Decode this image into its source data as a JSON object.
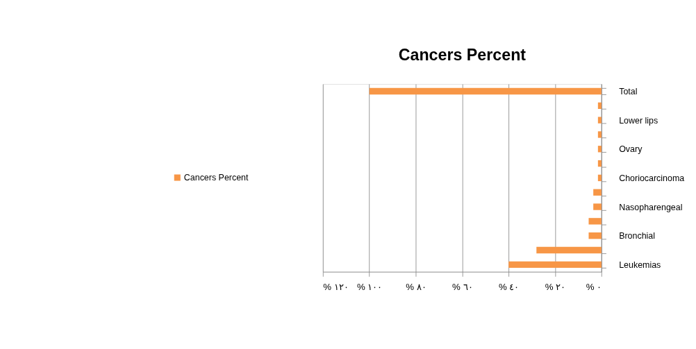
{
  "chart_data": {
    "type": "bar",
    "orientation": "horizontal",
    "title": "Cancers Percent",
    "categories": [
      "Total",
      null,
      "Lower lips",
      null,
      "Ovary",
      null,
      "Choriocarcinoma",
      null,
      "Nasopharengeal",
      null,
      "Bronchial",
      null,
      "Leukemias"
    ],
    "series": [
      {
        "name": "Cancers Percent",
        "color": "#f79646",
        "values": [
          100,
          1.5,
          1.5,
          1.5,
          1.5,
          1.5,
          1.5,
          3.5,
          3.5,
          5.5,
          5.5,
          28,
          40
        ]
      }
    ],
    "xlim": [
      120,
      0
    ],
    "xticks": [
      {
        "value": 0,
        "label": "% ٠"
      },
      {
        "value": 20,
        "label": "% ٢٠"
      },
      {
        "value": 40,
        "label": "% ٤٠"
      },
      {
        "value": 60,
        "label": "% ٦٠"
      },
      {
        "value": 80,
        "label": "% ٨٠"
      },
      {
        "value": 100,
        "label": "% ١٠٠"
      },
      {
        "value": 120,
        "label": "% ١٢٠"
      }
    ],
    "grid": "x",
    "legend": "left"
  }
}
